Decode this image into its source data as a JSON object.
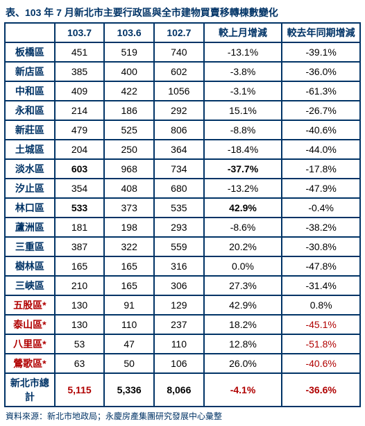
{
  "title": "表、103 年 7 月新北市主要行政區與全市建物買賣移轉棟數變化",
  "footnote": "資料來源：新北市地政局；永慶房產集團研究發展中心彙整",
  "headers": [
    "",
    "103.7",
    "103.6",
    "102.7",
    "較上月增減",
    "較去年同期增減"
  ],
  "rows": [
    {
      "label": "板橋區",
      "labelClass": "rowlabel",
      "cells": [
        {
          "v": "451"
        },
        {
          "v": "519"
        },
        {
          "v": "740"
        },
        {
          "v": "-13.1%"
        },
        {
          "v": "-39.1%"
        }
      ]
    },
    {
      "label": "新店區",
      "labelClass": "rowlabel",
      "cells": [
        {
          "v": "385"
        },
        {
          "v": "400"
        },
        {
          "v": "602"
        },
        {
          "v": "-3.8%"
        },
        {
          "v": "-36.0%"
        }
      ]
    },
    {
      "label": "中和區",
      "labelClass": "rowlabel",
      "cells": [
        {
          "v": "409"
        },
        {
          "v": "422"
        },
        {
          "v": "1056"
        },
        {
          "v": "-3.1%"
        },
        {
          "v": "-61.3%"
        }
      ]
    },
    {
      "label": "永和區",
      "labelClass": "rowlabel",
      "cells": [
        {
          "v": "214"
        },
        {
          "v": "186"
        },
        {
          "v": "292"
        },
        {
          "v": "15.1%"
        },
        {
          "v": "-26.7%"
        }
      ]
    },
    {
      "label": "新莊區",
      "labelClass": "rowlabel",
      "cells": [
        {
          "v": "479"
        },
        {
          "v": "525"
        },
        {
          "v": "806"
        },
        {
          "v": "-8.8%"
        },
        {
          "v": "-40.6%"
        }
      ]
    },
    {
      "label": "土城區",
      "labelClass": "rowlabel",
      "cells": [
        {
          "v": "204"
        },
        {
          "v": "250"
        },
        {
          "v": "364"
        },
        {
          "v": "-18.4%"
        },
        {
          "v": "-44.0%"
        }
      ]
    },
    {
      "label": "淡水區",
      "labelClass": "rowlabel",
      "cells": [
        {
          "v": "603",
          "c": "bold"
        },
        {
          "v": "968"
        },
        {
          "v": "734"
        },
        {
          "v": "-37.7%",
          "c": "bold"
        },
        {
          "v": "-17.8%"
        }
      ]
    },
    {
      "label": "汐止區",
      "labelClass": "rowlabel",
      "cells": [
        {
          "v": "354"
        },
        {
          "v": "408"
        },
        {
          "v": "680"
        },
        {
          "v": "-13.2%"
        },
        {
          "v": "-47.9%"
        }
      ]
    },
    {
      "label": "林口區",
      "labelClass": "rowlabel",
      "cells": [
        {
          "v": "533",
          "c": "bold"
        },
        {
          "v": "373"
        },
        {
          "v": "535"
        },
        {
          "v": "42.9%",
          "c": "bold"
        },
        {
          "v": "-0.4%"
        }
      ]
    },
    {
      "label": "蘆洲區",
      "labelClass": "rowlabel",
      "cells": [
        {
          "v": "181"
        },
        {
          "v": "198"
        },
        {
          "v": "293"
        },
        {
          "v": "-8.6%"
        },
        {
          "v": "-38.2%"
        }
      ]
    },
    {
      "label": "三重區",
      "labelClass": "rowlabel",
      "cells": [
        {
          "v": "387"
        },
        {
          "v": "322"
        },
        {
          "v": "559"
        },
        {
          "v": "20.2%"
        },
        {
          "v": "-30.8%"
        }
      ]
    },
    {
      "label": "樹林區",
      "labelClass": "rowlabel",
      "cells": [
        {
          "v": "165"
        },
        {
          "v": "165"
        },
        {
          "v": "316"
        },
        {
          "v": "0.0%"
        },
        {
          "v": "-47.8%"
        }
      ]
    },
    {
      "label": "三峽區",
      "labelClass": "rowlabel",
      "cells": [
        {
          "v": "210"
        },
        {
          "v": "165"
        },
        {
          "v": "306"
        },
        {
          "v": "27.3%"
        },
        {
          "v": "-31.4%"
        }
      ]
    },
    {
      "label": "五股區*",
      "labelClass": "redlabel",
      "cells": [
        {
          "v": "130"
        },
        {
          "v": "91"
        },
        {
          "v": "129"
        },
        {
          "v": "42.9%"
        },
        {
          "v": "0.8%"
        }
      ]
    },
    {
      "label": "泰山區*",
      "labelClass": "redlabel",
      "cells": [
        {
          "v": "130"
        },
        {
          "v": "110"
        },
        {
          "v": "237"
        },
        {
          "v": "18.2%"
        },
        {
          "v": "-45.1%",
          "c": "red"
        }
      ]
    },
    {
      "label": "八里區*",
      "labelClass": "redlabel",
      "cells": [
        {
          "v": "53"
        },
        {
          "v": "47"
        },
        {
          "v": "110"
        },
        {
          "v": "12.8%"
        },
        {
          "v": "-51.8%",
          "c": "red"
        }
      ]
    },
    {
      "label": "鶯歌區*",
      "labelClass": "redlabel",
      "cells": [
        {
          "v": "63"
        },
        {
          "v": "50"
        },
        {
          "v": "106"
        },
        {
          "v": "26.0%"
        },
        {
          "v": "-40.6%",
          "c": "red"
        }
      ]
    },
    {
      "label": "新北市總計",
      "labelClass": "rowlabel",
      "cells": [
        {
          "v": "5,115",
          "c": "redbold"
        },
        {
          "v": "5,336",
          "c": "bold"
        },
        {
          "v": "8,066",
          "c": "bold"
        },
        {
          "v": "-4.1%",
          "c": "redbold"
        },
        {
          "v": "-36.6%",
          "c": "redbold"
        }
      ]
    }
  ]
}
